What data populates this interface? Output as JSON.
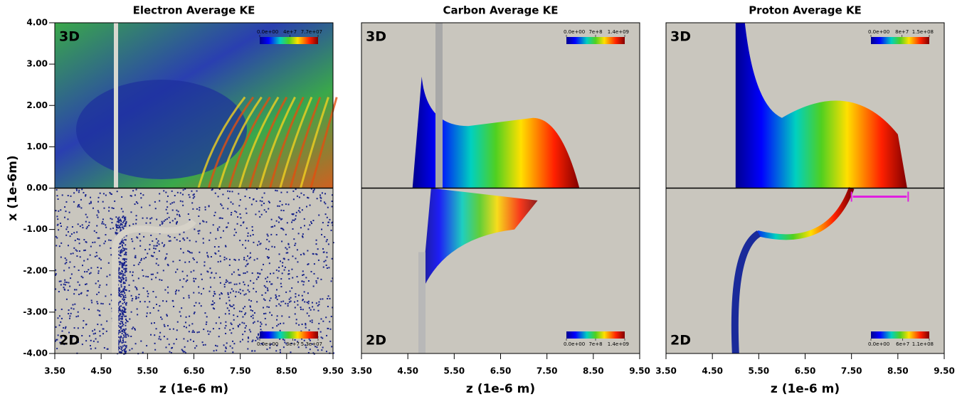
{
  "chart_data": [
    {
      "type": "heatmap",
      "title": "Electron Average KE",
      "xlabel": "z (1e-6 m)",
      "ylabel": "x (1e-6m)",
      "xlim": [
        3.5,
        9.5
      ],
      "ylim": [
        -4,
        4
      ],
      "xticks": [
        {
          "value": 3.5,
          "label": "3.50"
        },
        {
          "value": 4.5,
          "label": "4.50"
        },
        {
          "value": 5.5,
          "label": "5.50"
        },
        {
          "value": 6.5,
          "label": "6.50"
        },
        {
          "value": 7.5,
          "label": "7.50"
        },
        {
          "value": 8.5,
          "label": "8.50"
        },
        {
          "value": 9.5,
          "label": "9.50"
        }
      ],
      "yticks": [
        {
          "value": 4,
          "label": "4.00"
        },
        {
          "value": 3,
          "label": "3.00"
        },
        {
          "value": 2,
          "label": "2.00"
        },
        {
          "value": 1,
          "label": "1.00"
        },
        {
          "value": 0,
          "label": "0.00"
        },
        {
          "value": -1,
          "label": "-1.00"
        },
        {
          "value": -2,
          "label": "-2.00"
        },
        {
          "value": -3,
          "label": "-3.00"
        },
        {
          "value": -4,
          "label": "-4.00"
        }
      ],
      "annotations": [
        "3D",
        "2D"
      ],
      "colorbars": [
        {
          "clim": [
            0,
            77000000
          ],
          "ticks": [
            {
              "value": 0,
              "label": "0.0e+00"
            },
            {
              "value": 40000000,
              "label": "4e+7"
            },
            {
              "value": 77000000,
              "label": "7.7e+07"
            }
          ]
        },
        {
          "clim": [
            0,
            53000000
          ],
          "ticks": [
            {
              "value": 0,
              "label": "0.0e+00"
            },
            {
              "value": 30000000,
              "label": "3e+7"
            },
            {
              "value": 53000000,
              "label": "5.3e+07"
            }
          ]
        }
      ]
    },
    {
      "type": "heatmap",
      "title": "Carbon Average KE",
      "xlabel": "z (1e-6 m)",
      "xlim": [
        3.5,
        9.5
      ],
      "ylim": [
        -4,
        4
      ],
      "xticks": [
        {
          "value": 3.5,
          "label": "3.50"
        },
        {
          "value": 4.5,
          "label": "4.50"
        },
        {
          "value": 5.5,
          "label": "5.50"
        },
        {
          "value": 6.5,
          "label": "6.50"
        },
        {
          "value": 7.5,
          "label": "7.50"
        },
        {
          "value": 8.5,
          "label": "8.50"
        },
        {
          "value": 9.5,
          "label": "9.50"
        }
      ],
      "annotations": [
        "3D",
        "2D"
      ],
      "colorbars": [
        {
          "clim": [
            0,
            1400000000
          ],
          "ticks": [
            {
              "value": 0,
              "label": "0.0e+00"
            },
            {
              "value": 700000000,
              "label": "7e+8"
            },
            {
              "value": 1400000000,
              "label": "1.4e+09"
            }
          ]
        },
        {
          "clim": [
            0,
            1400000000
          ],
          "ticks": [
            {
              "value": 0,
              "label": "0.0e+00"
            },
            {
              "value": 700000000,
              "label": "7e+8"
            },
            {
              "value": 1400000000,
              "label": "1.4e+09"
            }
          ]
        }
      ]
    },
    {
      "type": "heatmap",
      "title": "Proton Average KE",
      "xlabel": "z (1e-6 m)",
      "xlim": [
        3.5,
        9.5
      ],
      "ylim": [
        -4,
        4
      ],
      "xticks": [
        {
          "value": 3.5,
          "label": "3.50"
        },
        {
          "value": 4.5,
          "label": "4.50"
        },
        {
          "value": 5.5,
          "label": "5.50"
        },
        {
          "value": 6.5,
          "label": "6.50"
        },
        {
          "value": 7.5,
          "label": "7.50"
        },
        {
          "value": 8.5,
          "label": "8.50"
        },
        {
          "value": 9.5,
          "label": "9.50"
        }
      ],
      "annotations": [
        "3D",
        "2D"
      ],
      "colorbars": [
        {
          "clim": [
            0,
            150000000
          ],
          "ticks": [
            {
              "value": 0,
              "label": "0.0e+00"
            },
            {
              "value": 80000000,
              "label": "8e+7"
            },
            {
              "value": 150000000,
              "label": "1.5e+08"
            }
          ]
        },
        {
          "clim": [
            0,
            110000000
          ],
          "ticks": [
            {
              "value": 0,
              "label": "0.0e+00"
            },
            {
              "value": 60000000,
              "label": "6e+7"
            },
            {
              "value": 110000000,
              "label": "1.1e+08"
            }
          ]
        }
      ]
    }
  ]
}
